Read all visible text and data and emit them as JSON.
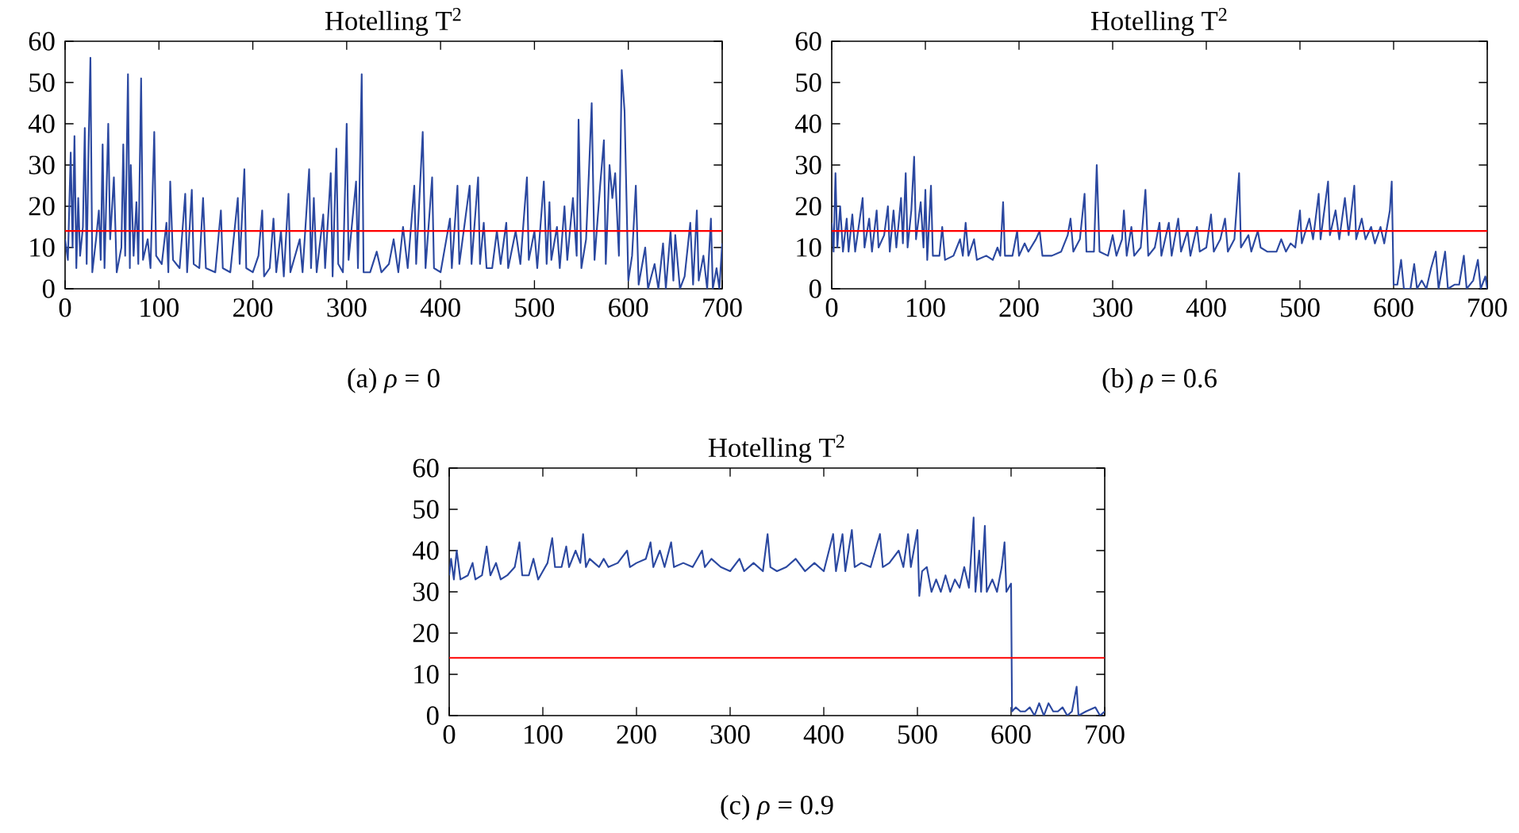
{
  "chart_data": [
    {
      "type": "line",
      "title": "Hotelling T$^{2}$",
      "xlim": [
        0,
        700
      ],
      "ylim": [
        0,
        60
      ],
      "xticks": [
        0,
        100,
        200,
        300,
        400,
        500,
        600,
        700
      ],
      "yticks": [
        0,
        10,
        20,
        30,
        40,
        50,
        60
      ],
      "series": [
        {
          "color": "#2b48a0",
          "x": [
            0,
            3,
            6,
            8,
            10,
            12,
            14,
            16,
            19,
            21,
            23,
            25,
            27,
            29,
            33,
            36,
            38,
            40,
            42,
            46,
            48,
            52,
            55,
            60,
            62,
            64,
            67,
            69,
            70,
            73,
            76,
            78,
            81,
            83,
            88,
            91,
            95,
            97,
            103,
            108,
            110,
            112,
            115,
            122,
            128,
            130,
            135,
            137,
            143,
            147,
            150,
            160,
            166,
            168,
            176,
            184,
            186,
            191,
            193,
            200,
            206,
            210,
            212,
            218,
            222,
            225,
            230,
            233,
            238,
            240,
            250,
            253,
            260,
            262,
            265,
            268,
            275,
            277,
            283,
            285,
            289,
            291,
            296,
            300,
            302,
            310,
            312,
            316,
            318,
            325,
            332,
            337,
            345,
            350,
            355,
            360,
            365,
            372,
            374,
            381,
            384,
            391,
            393,
            400,
            410,
            412,
            418,
            420,
            431,
            433,
            440,
            442,
            446,
            449,
            455,
            460,
            464,
            470,
            472,
            480,
            485,
            492,
            494,
            500,
            503,
            510,
            513,
            516,
            518,
            524,
            527,
            532,
            535,
            541,
            545,
            547,
            550,
            555,
            558,
            561,
            564,
            570,
            574,
            576,
            580,
            583,
            586,
            590,
            593,
            596,
            600,
            604,
            608,
            611,
            618,
            621,
            628,
            632,
            637,
            640,
            645,
            648,
            650,
            655,
            660,
            666,
            669,
            673,
            675,
            680,
            684,
            688,
            690,
            694,
            697,
            700
          ],
          "values": [
            12,
            7,
            33,
            10,
            37,
            5,
            22,
            8,
            15,
            39,
            6,
            34,
            56,
            4,
            12,
            19,
            7,
            35,
            5,
            40,
            12,
            27,
            4,
            10,
            35,
            8,
            52,
            5,
            30,
            8,
            21,
            6,
            51,
            7,
            12,
            5,
            38,
            8,
            6,
            16,
            4,
            26,
            7,
            5,
            23,
            4,
            24,
            6,
            5,
            22,
            5,
            4,
            19,
            5,
            4,
            22,
            6,
            29,
            5,
            4,
            8,
            19,
            3,
            5,
            17,
            4,
            14,
            3,
            23,
            4,
            12,
            4,
            29,
            5,
            22,
            4,
            18,
            5,
            28,
            3,
            34,
            6,
            4,
            40,
            7,
            26,
            5,
            52,
            4,
            4,
            9,
            4,
            6,
            12,
            4,
            15,
            5,
            25,
            6,
            38,
            5,
            27,
            5,
            4,
            17,
            5,
            25,
            6,
            25,
            6,
            27,
            6,
            16,
            5,
            5,
            14,
            6,
            16,
            5,
            14,
            6,
            27,
            7,
            14,
            5,
            26,
            6,
            21,
            7,
            15,
            5,
            20,
            7,
            22,
            8,
            41,
            5,
            12,
            28,
            45,
            7,
            25,
            36,
            6,
            30,
            22,
            28,
            8,
            53,
            43,
            2,
            8,
            25,
            1,
            10,
            0,
            6,
            0,
            11,
            0,
            14,
            2,
            13,
            0,
            3,
            16,
            1,
            19,
            2,
            8,
            0,
            17,
            0,
            5,
            0,
            11
          ]
        }
      ],
      "ref_lines": [
        {
          "axis": "y",
          "value": 14,
          "color": "#ff0000"
        }
      ],
      "annotations": [
        "(a)  *ρ* = 0"
      ]
    },
    {
      "type": "line",
      "title": "Hotelling T$^{2}$",
      "xlim": [
        0,
        700
      ],
      "ylim": [
        0,
        60
      ],
      "xticks": [
        0,
        100,
        200,
        300,
        400,
        500,
        600,
        700
      ],
      "yticks": [
        0,
        10,
        20,
        30,
        40,
        50,
        60
      ],
      "series": [
        {
          "color": "#2b48a0",
          "x": [
            0,
            2,
            4,
            6,
            9,
            12,
            16,
            18,
            22,
            25,
            30,
            33,
            35,
            40,
            43,
            48,
            50,
            56,
            60,
            62,
            66,
            69,
            74,
            76,
            79,
            81,
            85,
            88,
            90,
            95,
            98,
            100,
            102,
            106,
            108,
            115,
            118,
            121,
            130,
            137,
            140,
            143,
            146,
            152,
            155,
            165,
            172,
            177,
            180,
            183,
            185,
            193,
            198,
            200,
            206,
            210,
            218,
            222,
            225,
            235,
            245,
            252,
            255,
            258,
            265,
            270,
            272,
            280,
            283,
            286,
            295,
            300,
            304,
            310,
            312,
            315,
            320,
            323,
            330,
            335,
            338,
            345,
            350,
            352,
            360,
            363,
            370,
            373,
            380,
            383,
            390,
            393,
            400,
            405,
            408,
            415,
            420,
            423,
            430,
            435,
            437,
            445,
            448,
            455,
            458,
            465,
            475,
            480,
            485,
            490,
            495,
            500,
            502,
            510,
            514,
            520,
            522,
            530,
            532,
            538,
            542,
            548,
            552,
            558,
            560,
            566,
            570,
            576,
            580,
            586,
            590,
            596,
            598,
            600,
            604,
            608,
            611,
            618,
            622,
            625,
            630,
            635,
            640,
            645,
            648,
            655,
            658,
            665,
            670,
            675,
            678,
            685,
            690,
            693,
            698,
            700
          ],
          "values": [
            16,
            9,
            28,
            10,
            20,
            9,
            17,
            9,
            18,
            9,
            17,
            22,
            10,
            17,
            9,
            19,
            10,
            13,
            20,
            9,
            19,
            10,
            22,
            11,
            28,
            10,
            19,
            32,
            12,
            21,
            10,
            24,
            7,
            25,
            8,
            8,
            15,
            7,
            8,
            12,
            8,
            16,
            8,
            12,
            7,
            8,
            7,
            10,
            8,
            21,
            8,
            8,
            14,
            8,
            11,
            9,
            12,
            14,
            8,
            8,
            9,
            13,
            17,
            9,
            12,
            23,
            9,
            9,
            30,
            9,
            8,
            13,
            8,
            12,
            19,
            8,
            15,
            8,
            10,
            24,
            8,
            10,
            16,
            8,
            16,
            8,
            17,
            9,
            14,
            8,
            15,
            9,
            10,
            18,
            9,
            12,
            17,
            9,
            12,
            28,
            10,
            13,
            9,
            14,
            10,
            9,
            9,
            12,
            9,
            11,
            10,
            19,
            11,
            17,
            12,
            23,
            12,
            26,
            13,
            19,
            12,
            22,
            13,
            25,
            12,
            17,
            12,
            15,
            11,
            15,
            11,
            19,
            26,
            1,
            1,
            7,
            0,
            0,
            6,
            0,
            2,
            0,
            5,
            9,
            0,
            9,
            0,
            1,
            1,
            8,
            0,
            2,
            7,
            0,
            3,
            0
          ]
        }
      ],
      "ref_lines": [
        {
          "axis": "y",
          "value": 14,
          "color": "#ff0000"
        }
      ],
      "annotations": [
        "(b)  *ρ* = 0.6"
      ]
    },
    {
      "type": "line",
      "title": "Hotelling T$^{2}$",
      "xlim": [
        0,
        700
      ],
      "ylim": [
        0,
        60
      ],
      "xticks": [
        0,
        100,
        200,
        300,
        400,
        500,
        600,
        700
      ],
      "yticks": [
        0,
        10,
        20,
        30,
        40,
        50,
        60
      ],
      "series": [
        {
          "color": "#2b48a0",
          "x": [
            0,
            2,
            5,
            8,
            12,
            20,
            25,
            28,
            35,
            40,
            44,
            50,
            55,
            62,
            70,
            75,
            78,
            85,
            90,
            95,
            100,
            105,
            110,
            113,
            120,
            125,
            128,
            135,
            140,
            143,
            146,
            150,
            155,
            160,
            165,
            170,
            180,
            190,
            193,
            200,
            210,
            215,
            218,
            225,
            230,
            237,
            240,
            250,
            260,
            270,
            273,
            280,
            290,
            300,
            310,
            315,
            325,
            335,
            340,
            343,
            350,
            360,
            370,
            380,
            390,
            400,
            410,
            413,
            420,
            423,
            430,
            433,
            440,
            450,
            460,
            463,
            470,
            480,
            485,
            490,
            493,
            500,
            502,
            505,
            510,
            515,
            520,
            525,
            530,
            535,
            540,
            545,
            550,
            555,
            560,
            562,
            566,
            568,
            572,
            574,
            580,
            585,
            590,
            593,
            595,
            600,
            601,
            605,
            610,
            615,
            620,
            625,
            630,
            635,
            640,
            645,
            650,
            655,
            660,
            665,
            670,
            672,
            680,
            690,
            695,
            700
          ],
          "values": [
            34,
            38,
            33,
            40,
            33,
            34,
            37,
            33,
            34,
            41,
            34,
            37,
            33,
            34,
            36,
            42,
            34,
            34,
            38,
            33,
            35,
            37,
            43,
            36,
            36,
            41,
            36,
            40,
            37,
            44,
            36,
            38,
            37,
            36,
            38,
            36,
            37,
            40,
            36,
            37,
            38,
            42,
            36,
            40,
            36,
            42,
            36,
            37,
            36,
            40,
            36,
            38,
            36,
            35,
            38,
            35,
            37,
            35,
            44,
            36,
            35,
            36,
            38,
            35,
            37,
            35,
            44,
            35,
            44,
            35,
            45,
            36,
            37,
            36,
            44,
            36,
            37,
            40,
            36,
            44,
            36,
            45,
            29,
            35,
            36,
            30,
            33,
            30,
            34,
            30,
            33,
            31,
            36,
            31,
            48,
            30,
            40,
            30,
            46,
            30,
            33,
            30,
            36,
            42,
            30,
            32,
            1,
            2,
            1,
            1,
            2,
            0,
            3,
            0,
            3,
            1,
            1,
            2,
            0,
            1,
            7,
            0,
            1,
            2,
            0,
            1
          ]
        }
      ],
      "ref_lines": [
        {
          "axis": "y",
          "value": 14,
          "color": "#ff0000"
        }
      ],
      "annotations": [
        "(c)  *ρ* = 0.9"
      ]
    }
  ]
}
